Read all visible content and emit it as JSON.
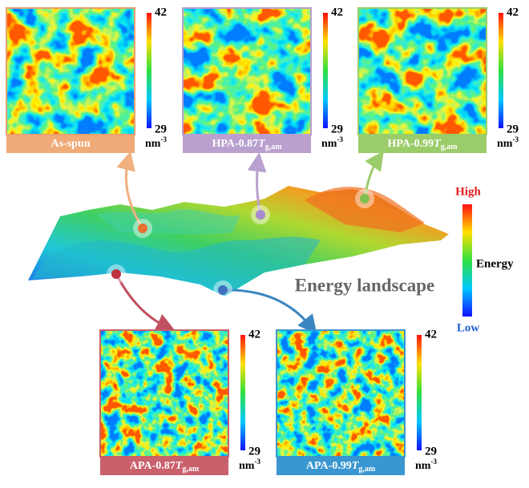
{
  "panels": [
    {
      "label": {
        "prefix": "As-spun"
      },
      "colorbar": {
        "max": 42,
        "min": 29,
        "unit": "nm",
        "unit_exp": "-3"
      }
    },
    {
      "label": {
        "prefix": "HPA-0.87",
        "var": "T",
        "sub": "g,am"
      },
      "colorbar": {
        "max": 42,
        "min": 29,
        "unit": "nm",
        "unit_exp": "-3"
      }
    },
    {
      "label": {
        "prefix": "HPA-0.99",
        "var": "T",
        "sub": "g,am"
      },
      "colorbar": {
        "max": 42,
        "min": 29,
        "unit": "nm",
        "unit_exp": "-3"
      }
    },
    {
      "label": {
        "prefix": "APA-0.87",
        "var": "T",
        "sub": "g,am"
      },
      "colorbar": {
        "max": 42,
        "min": 29,
        "unit": "nm",
        "unit_exp": "-3"
      }
    },
    {
      "label": {
        "prefix": "APA-0.99",
        "var": "T",
        "sub": "g,am"
      },
      "colorbar": {
        "max": 42,
        "min": 29,
        "unit": "nm",
        "unit_exp": "-3"
      }
    }
  ],
  "landscape": {
    "title": "Energy landscape",
    "colorbar": {
      "high": "High",
      "label": "Energy",
      "low": "Low"
    }
  }
}
